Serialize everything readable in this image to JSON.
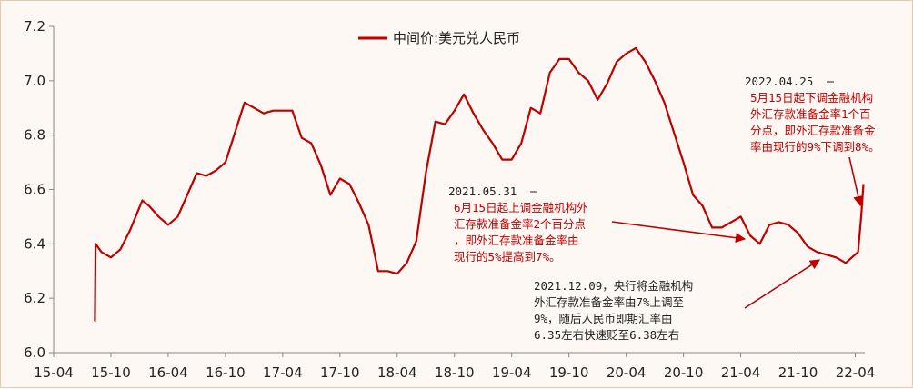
{
  "colors": {
    "series": "#c00000",
    "axis": "#888888",
    "text_dark": "#222222",
    "annotation_red": "#c00000"
  },
  "chart_data": {
    "type": "line",
    "title": "",
    "xlabel": "",
    "ylabel": "",
    "ylim": [
      6.0,
      7.2
    ],
    "yticks": [
      "6.0",
      "6.2",
      "6.4",
      "6.6",
      "6.8",
      "7.0",
      "7.2"
    ],
    "xlim": [
      "2015-04",
      "2022-05"
    ],
    "xticks": [
      "15-04",
      "15-10",
      "16-04",
      "16-10",
      "17-04",
      "17-10",
      "18-04",
      "18-10",
      "19-04",
      "19-10",
      "20-04",
      "20-10",
      "21-04",
      "21-10",
      "22-04"
    ],
    "grid": false,
    "legend": {
      "position": "top-center"
    },
    "series": [
      {
        "name": "中间价:美元兑人民币",
        "x": [
          "2015-08-10",
          "2015-08-11",
          "2015-08-13",
          "2015-09-01",
          "2015-10-01",
          "2015-11-01",
          "2015-12-01",
          "2016-01-10",
          "2016-02-01",
          "2016-03-01",
          "2016-04-01",
          "2016-05-01",
          "2016-06-01",
          "2016-07-01",
          "2016-08-01",
          "2016-09-01",
          "2016-10-01",
          "2016-11-01",
          "2016-12-01",
          "2017-01-01",
          "2017-02-01",
          "2017-03-01",
          "2017-04-01",
          "2017-05-01",
          "2017-06-01",
          "2017-07-01",
          "2017-08-01",
          "2017-09-01",
          "2017-10-01",
          "2017-11-01",
          "2017-12-01",
          "2018-01-01",
          "2018-02-01",
          "2018-03-01",
          "2018-04-01",
          "2018-05-01",
          "2018-06-01",
          "2018-07-01",
          "2018-08-01",
          "2018-09-01",
          "2018-10-01",
          "2018-11-01",
          "2018-12-01",
          "2019-01-01",
          "2019-02-01",
          "2019-03-01",
          "2019-04-01",
          "2019-05-01",
          "2019-06-01",
          "2019-07-01",
          "2019-08-01",
          "2019-09-01",
          "2019-10-01",
          "2019-11-01",
          "2019-12-01",
          "2020-01-01",
          "2020-02-01",
          "2020-03-01",
          "2020-04-01",
          "2020-05-01",
          "2020-06-01",
          "2020-07-01",
          "2020-08-01",
          "2020-09-01",
          "2020-10-01",
          "2020-11-01",
          "2020-12-01",
          "2021-01-01",
          "2021-02-01",
          "2021-03-01",
          "2021-04-01",
          "2021-05-01",
          "2021-06-01",
          "2021-07-01",
          "2021-08-01",
          "2021-09-01",
          "2021-10-01",
          "2021-11-01",
          "2021-12-01",
          "2022-01-01",
          "2022-02-01",
          "2022-03-01",
          "2022-04-10",
          "2022-04-20",
          "2022-04-27"
        ],
        "values": [
          6.116,
          6.116,
          6.4,
          6.37,
          6.35,
          6.38,
          6.45,
          6.56,
          6.54,
          6.5,
          6.47,
          6.5,
          6.58,
          6.66,
          6.65,
          6.67,
          6.7,
          6.81,
          6.92,
          6.9,
          6.88,
          6.89,
          6.89,
          6.89,
          6.79,
          6.77,
          6.69,
          6.58,
          6.64,
          6.62,
          6.55,
          6.47,
          6.3,
          6.3,
          6.29,
          6.33,
          6.41,
          6.66,
          6.85,
          6.84,
          6.89,
          6.95,
          6.88,
          6.82,
          6.77,
          6.71,
          6.71,
          6.77,
          6.9,
          6.88,
          7.03,
          7.08,
          7.08,
          7.03,
          7.0,
          6.93,
          6.99,
          7.07,
          7.1,
          7.12,
          7.07,
          7.0,
          6.92,
          6.81,
          6.7,
          6.58,
          6.54,
          6.46,
          6.46,
          6.48,
          6.5,
          6.43,
          6.4,
          6.47,
          6.48,
          6.47,
          6.44,
          6.39,
          6.37,
          6.36,
          6.35,
          6.33,
          6.37,
          6.5,
          6.62
        ]
      }
    ],
    "annotations": [
      {
        "date": "2021.05.31",
        "lines": [
          "6月15日起上调金融机构外",
          "汇存款准备金率2个百分点",
          "，即外汇存款准备金率由",
          "现行的5%提高到7%。"
        ]
      },
      {
        "date": "2022.04.25",
        "lines": [
          "5月15日起下调金融机构",
          "外汇存款准备金率1个百",
          "分点，即外汇存款准备金",
          "率由现行的9%下调到8%。"
        ]
      },
      {
        "lines": [
          "2021.12.09，央行将金融机构",
          "外汇存款准备金率由7%上调至",
          "9%，随后人民币即期汇率由",
          "6.35左右快速贬至6.38左右"
        ]
      }
    ]
  }
}
